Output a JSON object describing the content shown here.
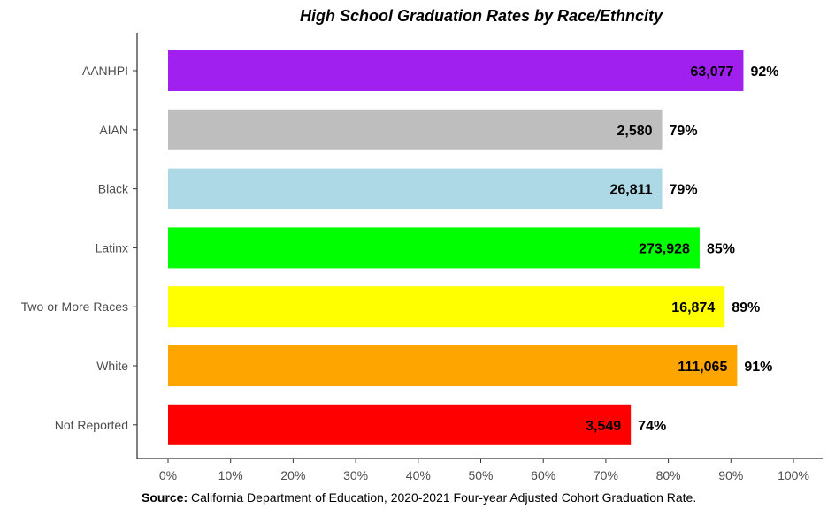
{
  "chart_data": {
    "type": "bar",
    "orientation": "horizontal",
    "title": "High School Graduation Rates by Race/Ethncity",
    "categories": [
      "AANHPI",
      "AIAN",
      "Black",
      "Latinx",
      "Two or More Races",
      "White",
      "Not Reported"
    ],
    "values": [
      92,
      79,
      79,
      85,
      89,
      91,
      74
    ],
    "value_labels": [
      "92%",
      "79%",
      "79%",
      "85%",
      "89%",
      "91%",
      "74%"
    ],
    "counts": [
      "63,077",
      "2,580",
      "26,811",
      "273,928",
      "16,874",
      "111,065",
      "3,549"
    ],
    "colors": [
      "#a020f0",
      "#bebebe",
      "#add8e6",
      "#00ff00",
      "#ffff00",
      "#ffa500",
      "#ff0000"
    ],
    "xlim": [
      0,
      100
    ],
    "xticks": [
      "0%",
      "10%",
      "20%",
      "30%",
      "40%",
      "50%",
      "60%",
      "70%",
      "80%",
      "90%",
      "100%"
    ],
    "grid": false,
    "legend": "none"
  },
  "source": {
    "label": "Source:",
    "text": " California Department of Education, 2020-2021 Four-year Adjusted Cohort Graduation Rate."
  }
}
